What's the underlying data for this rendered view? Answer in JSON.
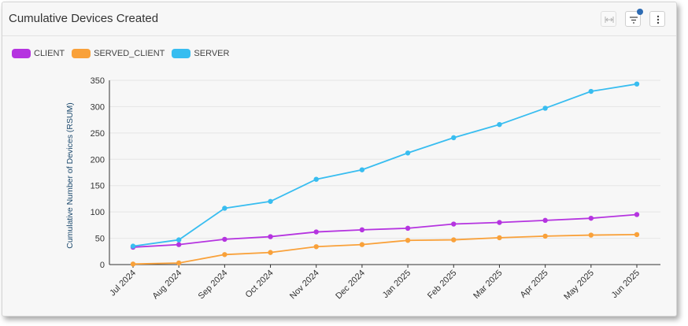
{
  "header": {
    "title": "Cumulative Devices Created",
    "fit_icon": "horizontal-fit-icon",
    "filter_icon": "filter-icon",
    "more_icon": "more-vertical-icon",
    "notification_color": "#2d6bb3"
  },
  "chart_data": {
    "type": "line",
    "title": "",
    "xlabel": "",
    "ylabel": "Cumulative Number of Devices (RSUM)",
    "categories": [
      "Jul 2024",
      "Aug 2024",
      "Sep 2024",
      "Oct 2024",
      "Nov 2024",
      "Dec 2024",
      "Jan 2025",
      "Feb 2025",
      "Mar 2025",
      "Apr 2025",
      "May 2025",
      "Jun 2025"
    ],
    "ylim": [
      0,
      350
    ],
    "yticks": [
      "0",
      "50",
      "100",
      "150",
      "200",
      "250",
      "300",
      "350"
    ],
    "grid": true,
    "legend_position": "top-left",
    "series": [
      {
        "name": "CLIENT",
        "color": "#b534e0",
        "values": [
          33,
          38,
          48,
          53,
          62,
          66,
          69,
          77,
          80,
          84,
          88,
          95
        ]
      },
      {
        "name": "SERVED_CLIENT",
        "color": "#f9a13a",
        "values": [
          1,
          3,
          19,
          23,
          34,
          38,
          46,
          47,
          51,
          54,
          56,
          57
        ]
      },
      {
        "name": "SERVER",
        "color": "#38bdf0",
        "values": [
          35,
          47,
          107,
          120,
          162,
          180,
          212,
          241,
          266,
          297,
          329,
          343
        ]
      }
    ]
  }
}
